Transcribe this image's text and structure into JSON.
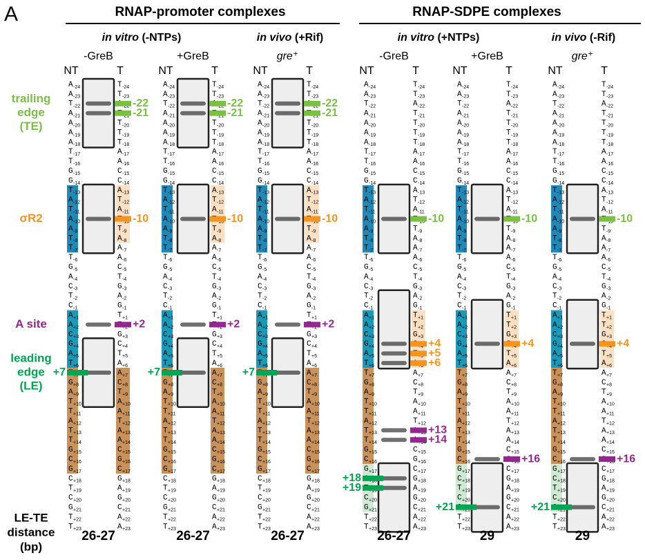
{
  "panel_label": "A",
  "groups": [
    {
      "title": "RNAP-promoter complexes",
      "conditions": [
        {
          "italic": "in vitro",
          "rest": "(-NTPs)"
        },
        {
          "italic": "in vivo",
          "rest": "(+Rif)"
        }
      ]
    },
    {
      "title": "RNAP-SDPE complexes",
      "conditions": [
        {
          "italic": "in vitro",
          "rest": "(+NTPs)"
        },
        {
          "italic": "in vivo",
          "rest": "(-Rif)"
        }
      ]
    }
  ],
  "strand_labels": [
    "NT",
    "T"
  ],
  "positions": [
    "-24",
    "-23",
    "-22",
    "-21",
    "-20",
    "-19",
    "-18",
    "-17",
    "-16",
    "-15",
    "-14",
    "-13",
    "-12",
    "-11",
    "-10",
    "-9",
    "-8",
    "-7",
    "-6",
    "-5",
    "-4",
    "-3",
    "-2",
    "-1",
    "+1",
    "+2",
    "+3",
    "+4",
    "+5",
    "+6",
    "+7",
    "+8",
    "+9",
    "+10",
    "+11",
    "+12",
    "+13",
    "+14",
    "+15",
    "+16",
    "+17",
    "+18",
    "+19",
    "+20",
    "+21",
    "+22",
    "+23"
  ],
  "nt_bases": [
    "A",
    "A",
    "T",
    "A",
    "A",
    "A",
    "A",
    "T",
    "T",
    "G",
    "G",
    "T",
    "A",
    "T",
    "A",
    "A",
    "T",
    "T",
    "T",
    "G",
    "A",
    "C",
    "T",
    "C",
    "A",
    "A",
    "C",
    "G",
    "A",
    "T",
    "T",
    "G",
    "A",
    "T",
    "T",
    "A",
    "T",
    "T",
    "G",
    "C",
    "G",
    "C",
    "T",
    "C",
    "G",
    "T",
    "T"
  ],
  "t_bases": [
    "T",
    "T",
    "A",
    "T",
    "T",
    "T",
    "T",
    "A",
    "A",
    "C",
    "C",
    "A",
    "T",
    "A",
    "T",
    "T",
    "A",
    "A",
    "A",
    "C",
    "T",
    "G",
    "A",
    "G",
    "T",
    "T",
    "G",
    "C",
    "T",
    "A",
    "A",
    "C",
    "T",
    "A",
    "A",
    "T",
    "A",
    "A",
    "C",
    "G",
    "C",
    "G",
    "A",
    "G",
    "C",
    "A",
    "A"
  ],
  "side_labels": [
    {
      "lines": [
        "trailing",
        "edge",
        "(TE)"
      ],
      "color": "#7ac143",
      "at": "-21"
    },
    {
      "lines": [
        "σR2"
      ],
      "color": "#f7941d",
      "at": "-10"
    },
    {
      "lines": [
        "A site"
      ],
      "color": "#92278f",
      "at": "+2"
    },
    {
      "lines": [
        "leading",
        "edge",
        "(LE)"
      ],
      "color": "#00a651",
      "at": "+7"
    }
  ],
  "distance_label": [
    "LE-TE",
    "distance",
    "(bp)"
  ],
  "lanes": [
    {
      "label": "-GreB",
      "distance": "26-27",
      "markers": [
        {
          "label": "-22",
          "strand": "T",
          "color": "#7ac143"
        },
        {
          "label": "-21",
          "strand": "T",
          "color": "#7ac143"
        },
        {
          "label": "-10",
          "strand": "T",
          "color": "#f7941d"
        },
        {
          "label": "+2",
          "strand": "T",
          "color": "#92278f"
        },
        {
          "label": "+7",
          "strand": "NT",
          "color": "#00a651"
        }
      ]
    },
    {
      "label": "+GreB",
      "distance": "26-27",
      "markers": [
        {
          "label": "-22",
          "strand": "T",
          "color": "#7ac143"
        },
        {
          "label": "-21",
          "strand": "T",
          "color": "#7ac143"
        },
        {
          "label": "-10",
          "strand": "T",
          "color": "#f7941d"
        },
        {
          "label": "+2",
          "strand": "T",
          "color": "#92278f"
        },
        {
          "label": "+7",
          "strand": "NT",
          "color": "#00a651"
        }
      ]
    },
    {
      "label": "gre⁺",
      "distance": "26-27",
      "markers": [
        {
          "label": "-22",
          "strand": "T",
          "color": "#7ac143"
        },
        {
          "label": "-21",
          "strand": "T",
          "color": "#7ac143"
        },
        {
          "label": "-10",
          "strand": "T",
          "color": "#f7941d"
        },
        {
          "label": "+2",
          "strand": "T",
          "color": "#92278f"
        },
        {
          "label": "+7",
          "strand": "NT",
          "color": "#00a651"
        }
      ]
    },
    {
      "label": "-GreB",
      "distance": "26-27",
      "markers": [
        {
          "label": "-10",
          "strand": "T",
          "color": "#7ac143"
        },
        {
          "label": "+4",
          "strand": "T",
          "color": "#f7941d"
        },
        {
          "label": "+5",
          "strand": "T",
          "color": "#f7941d"
        },
        {
          "label": "+6",
          "strand": "T",
          "color": "#f7941d"
        },
        {
          "label": "+13",
          "strand": "T",
          "color": "#92278f"
        },
        {
          "label": "+14",
          "strand": "T",
          "color": "#92278f"
        },
        {
          "label": "+18",
          "strand": "NT",
          "color": "#00a651"
        },
        {
          "label": "+19",
          "strand": "NT",
          "color": "#00a651"
        }
      ]
    },
    {
      "label": "+GreB",
      "distance": "29",
      "markers": [
        {
          "label": "-10",
          "strand": "T",
          "color": "#7ac143"
        },
        {
          "label": "+4",
          "strand": "T",
          "color": "#f7941d"
        },
        {
          "label": "+16",
          "strand": "T",
          "color": "#92278f"
        },
        {
          "label": "+21",
          "strand": "NT",
          "color": "#00a651"
        }
      ]
    },
    {
      "label": "gre⁺",
      "distance": "29",
      "markers": [
        {
          "label": "-10",
          "strand": "T",
          "color": "#7ac143"
        },
        {
          "label": "+4",
          "strand": "T",
          "color": "#f7941d"
        },
        {
          "label": "+16",
          "strand": "T",
          "color": "#92278f"
        },
        {
          "label": "+21",
          "strand": "NT",
          "color": "#00a651"
        }
      ]
    }
  ]
}
